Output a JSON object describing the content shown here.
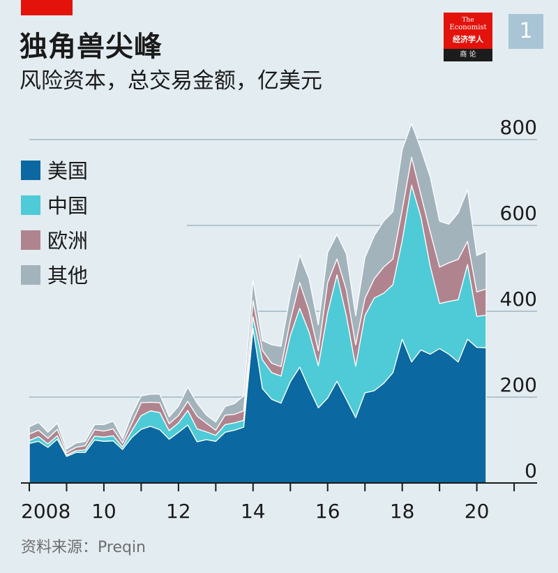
{
  "header": {
    "title": "独角兽尖峰",
    "subtitle": "风险资本，总交易金额，亿美元"
  },
  "logo": {
    "line1": "The",
    "line2": "Economist",
    "line3": "经济学人",
    "line4": "商 论"
  },
  "badge": "1",
  "source": "资料来源：Preqin",
  "colors": {
    "美国": "#0b68a0",
    "中国": "#4ecbd6",
    "欧洲": "#b0848e",
    "其他": "#a2b3bc",
    "brand_red": "#e3120b",
    "background": "#e3ecf1"
  },
  "chart_data": {
    "type": "area",
    "stacked": true,
    "x": [
      2008.0,
      2008.25,
      2008.5,
      2008.75,
      2009.0,
      2009.25,
      2009.5,
      2009.75,
      2010.0,
      2010.25,
      2010.5,
      2010.75,
      2011.0,
      2011.25,
      2011.5,
      2011.75,
      2012.0,
      2012.25,
      2012.5,
      2012.75,
      2013.0,
      2013.25,
      2013.5,
      2013.75,
      2014.0,
      2014.25,
      2014.5,
      2014.75,
      2015.0,
      2015.25,
      2015.5,
      2015.75,
      2016.0,
      2016.25,
      2016.5,
      2016.75,
      2017.0,
      2017.25,
      2017.5,
      2017.75,
      2018.0,
      2018.25,
      2018.5,
      2018.75,
      2019.0,
      2019.25,
      2019.5,
      2019.75,
      2020.0,
      2020.25
    ],
    "x_ticks": [
      2008,
      2010,
      2012,
      2014,
      2016,
      2018,
      2020
    ],
    "x_tick_labels": [
      "2008",
      "10",
      "12",
      "14",
      "16",
      "18",
      "20"
    ],
    "y_ticks": [
      0,
      200,
      400,
      600,
      800
    ],
    "y_tick_labels": [
      "0",
      "200",
      "400",
      "600",
      "800"
    ],
    "ylim": [
      0,
      800
    ],
    "legend_position": "top-left",
    "grid": true,
    "series": [
      {
        "name": "美国",
        "values": [
          92,
          97,
          83,
          102,
          62,
          71,
          71,
          100,
          97,
          98,
          78,
          106,
          125,
          132,
          124,
          102,
          118,
          135,
          96,
          101,
          97,
          118,
          123,
          130,
          360,
          220,
          195,
          186,
          236,
          270,
          221,
          175,
          198,
          237,
          195,
          152,
          210,
          215,
          232,
          257,
          335,
          282,
          310,
          300,
          313,
          300,
          282,
          335,
          316,
          315
        ]
      },
      {
        "name": "中国",
        "values": [
          7,
          11,
          8,
          8,
          3,
          4,
          6,
          9,
          10,
          12,
          6,
          16,
          32,
          36,
          40,
          20,
          22,
          34,
          30,
          18,
          14,
          18,
          17,
          16,
          27,
          67,
          62,
          63,
          108,
          137,
          131,
          98,
          199,
          248,
          195,
          120,
          180,
          216,
          210,
          205,
          230,
          412,
          310,
          205,
          105,
          123,
          145,
          174,
          72,
          76
        ]
      },
      {
        "name": "欧洲",
        "values": [
          15,
          15,
          13,
          15,
          6,
          8,
          10,
          15,
          14,
          16,
          9,
          17,
          30,
          20,
          23,
          16,
          17,
          21,
          30,
          20,
          12,
          22,
          20,
          22,
          38,
          22,
          22,
          22,
          35,
          60,
          50,
          35,
          70,
          37,
          60,
          50,
          40,
          45,
          61,
          60,
          72,
          65,
          52,
          80,
          85,
          90,
          94,
          54,
          57,
          61
        ]
      },
      {
        "name": "其他",
        "values": [
          17,
          18,
          14,
          14,
          8,
          10,
          10,
          12,
          15,
          18,
          10,
          20,
          16,
          19,
          20,
          16,
          22,
          33,
          30,
          19,
          19,
          20,
          25,
          35,
          48,
          23,
          43,
          47,
          60,
          64,
          74,
          60,
          70,
          57,
          84,
          67,
          95,
          100,
          107,
          110,
          140,
          78,
          106,
          128,
          107,
          90,
          108,
          120,
          85,
          88
        ]
      }
    ]
  }
}
